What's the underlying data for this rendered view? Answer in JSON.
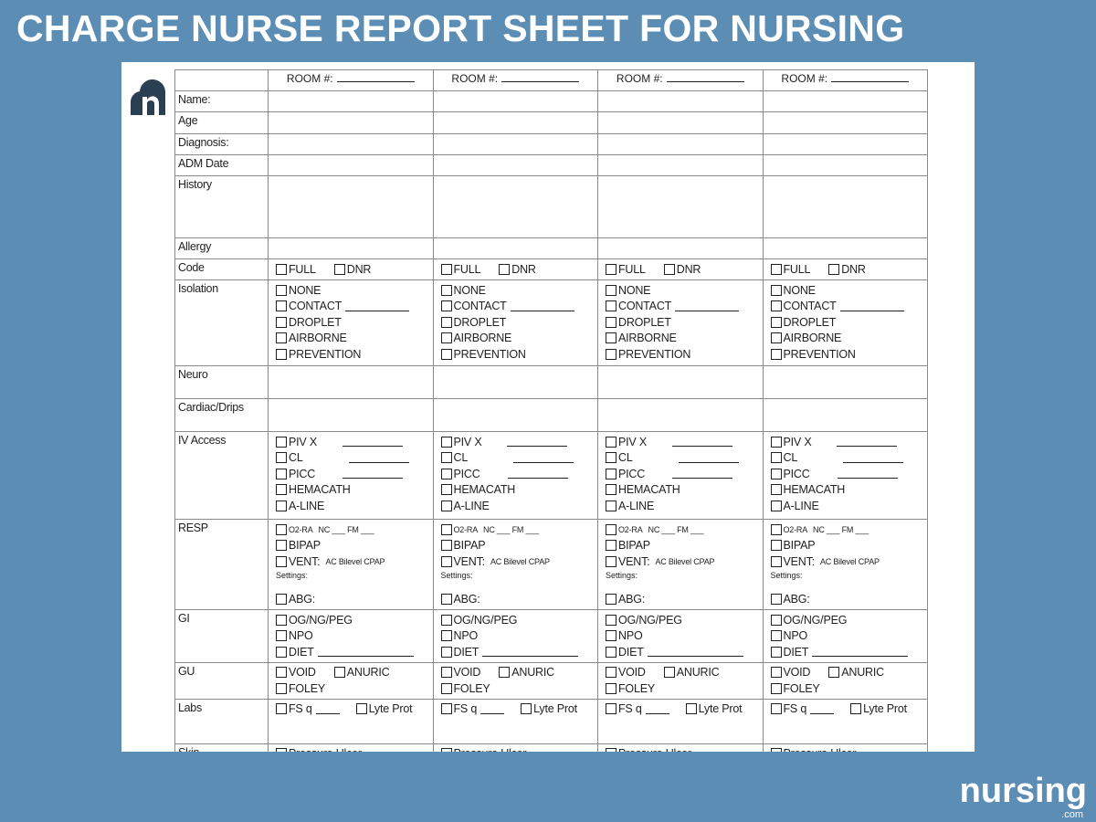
{
  "title": "CHARGE NURSE REPORT SHEET FOR NURSING",
  "room_label": "ROOM #:",
  "brand": {
    "name": "nursing",
    "suffix": ".com",
    "color": "#2b3f52",
    "background": "#5b8db5"
  },
  "rows": [
    {
      "label": "Name:",
      "h": 23,
      "items": []
    },
    {
      "label": "Age",
      "h": 24,
      "items": []
    },
    {
      "label": "Diagnosis:",
      "h": 23,
      "items": []
    },
    {
      "label": "ADM Date",
      "h": 23,
      "items": []
    },
    {
      "label": "History",
      "h": 68,
      "items": []
    },
    {
      "label": "Allergy",
      "h": 23,
      "items": []
    },
    {
      "label": "Code",
      "h": 23,
      "items": [
        [
          {
            "t": "FULL"
          },
          {
            "t": "DNR"
          }
        ]
      ]
    },
    {
      "label": "Isolation",
      "h": 94,
      "items": [
        [
          {
            "t": "NONE"
          }
        ],
        [
          {
            "t": "CONTACT",
            "line": 70
          }
        ],
        [
          {
            "t": "DROPLET"
          }
        ],
        [
          {
            "t": "AIRBORNE"
          }
        ],
        [
          {
            "t": "PREVENTION"
          }
        ]
      ]
    },
    {
      "label": "Neuro",
      "h": 36,
      "items": []
    },
    {
      "label": "Cardiac/Drips",
      "h": 36,
      "items": []
    },
    {
      "label": "IV Access",
      "h": 96,
      "items": [
        [
          {
            "t": "PIV X",
            "line": 66,
            "pad": 28
          }
        ],
        [
          {
            "t": "CL",
            "line": 66,
            "pad": 50
          }
        ],
        [
          {
            "t": "PICC",
            "line": 66,
            "pad": 30
          }
        ],
        [
          {
            "t": "HEMACATH"
          }
        ],
        [
          {
            "t": "A-LINE"
          }
        ]
      ]
    },
    {
      "label": "RESP",
      "h": 94,
      "items": [
        [
          {
            "t": "O2-RA",
            "small": true,
            "extra": "NC ___   FM ___"
          }
        ],
        [
          {
            "t": "BIPAP"
          }
        ],
        [
          {
            "t": "VENT:",
            "extra": "AC Bilevel CPAP"
          }
        ],
        "Settings:",
        "",
        [
          {
            "t": "ABG:"
          }
        ]
      ]
    },
    {
      "label": "GI",
      "h": 52,
      "items": [
        [
          {
            "t": "OG/NG/PEG"
          }
        ],
        [
          {
            "t": "NPO"
          }
        ],
        [
          {
            "t": "DIET",
            "line": 105
          }
        ]
      ]
    },
    {
      "label": "GU",
      "h": 34,
      "items": [
        [
          {
            "t": "VOID"
          },
          {
            "t": "ANURIC"
          }
        ],
        [
          {
            "t": "FOLEY"
          }
        ]
      ]
    },
    {
      "label": "Labs",
      "h": 49,
      "items": [
        [
          {
            "t": "FS q",
            "line": 26
          },
          {
            "t": "Lyte Prot"
          }
        ]
      ]
    },
    {
      "label": "Skin",
      "h": 23,
      "items": [
        [
          {
            "t": "Pressure Ulcer"
          }
        ]
      ]
    },
    {
      "label": "",
      "h": 10,
      "items": []
    }
  ]
}
